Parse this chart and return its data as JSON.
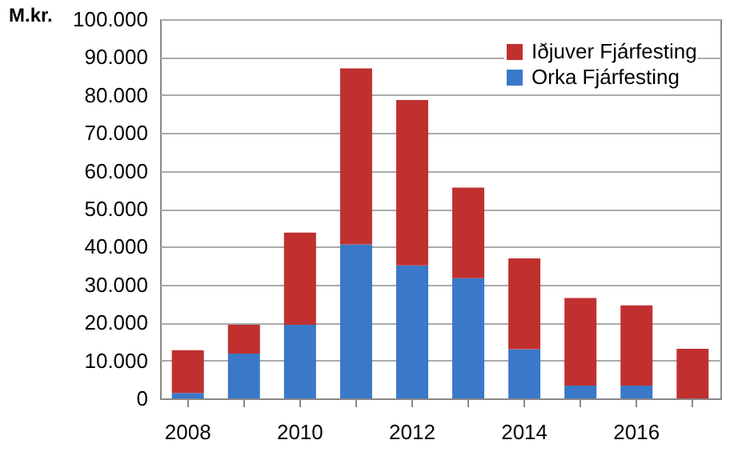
{
  "chart_data": {
    "type": "bar",
    "stacked": true,
    "ylabel": "M.kr.",
    "categories": [
      "2008",
      null,
      "2010",
      null,
      "2012",
      null,
      "2014",
      null,
      "2016",
      null
    ],
    "series": [
      {
        "name": "Orka Fjárfesting",
        "color": "#3a78c9",
        "values": [
          1400,
          11800,
          19400,
          40600,
          35100,
          31700,
          13000,
          3400,
          3400,
          0
        ]
      },
      {
        "name": "Iðjuver Fjárfesting",
        "color": "#c0302f",
        "values": [
          11300,
          7600,
          24300,
          46400,
          43600,
          23900,
          23900,
          23100,
          21100,
          13100
        ]
      }
    ],
    "ylim": [
      0,
      100000
    ],
    "yticks": [
      {
        "value": 0,
        "label": "0"
      },
      {
        "value": 10000,
        "label": "10.000"
      },
      {
        "value": 20000,
        "label": "20.000"
      },
      {
        "value": 30000,
        "label": "30.000"
      },
      {
        "value": 40000,
        "label": "40.000"
      },
      {
        "value": 50000,
        "label": "50.000"
      },
      {
        "value": 60000,
        "label": "60.000"
      },
      {
        "value": 70000,
        "label": "70.000"
      },
      {
        "value": 80000,
        "label": "80.000"
      },
      {
        "value": 90000,
        "label": "90.000"
      },
      {
        "value": 100000,
        "label": "100.000"
      }
    ],
    "grid": "y",
    "legend": "top right"
  }
}
